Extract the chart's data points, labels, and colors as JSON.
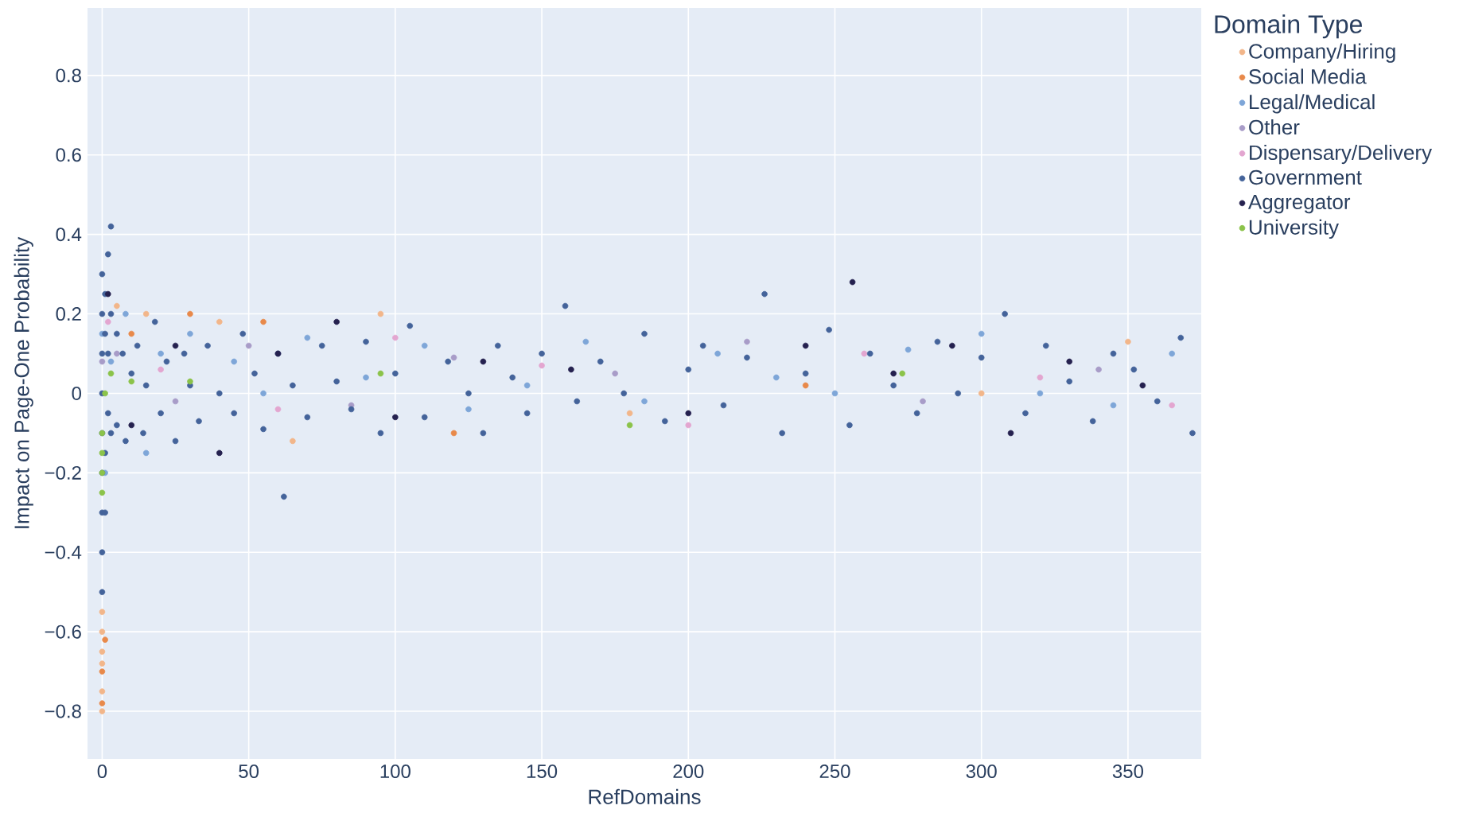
{
  "chart_data": {
    "type": "scatter",
    "xlabel": "RefDomains",
    "ylabel": "Impact on Page-One Probability",
    "legend_title": "Domain Type",
    "legend": "right",
    "grid": true,
    "xlim": [
      -5,
      375
    ],
    "ylim": [
      -0.92,
      0.97
    ],
    "xticks": [
      0,
      50,
      100,
      150,
      200,
      250,
      300,
      350
    ],
    "yticks": [
      {
        "value": -0.8,
        "label": "−0.8"
      },
      {
        "value": -0.6,
        "label": "−0.6"
      },
      {
        "value": -0.4,
        "label": "−0.4"
      },
      {
        "value": -0.2,
        "label": "−0.2"
      },
      0,
      0.2,
      0.4,
      0.6,
      0.8
    ],
    "series": [
      {
        "name": "Company/Hiring",
        "color": "#f2b68a",
        "x": [
          0,
          0,
          0,
          0,
          0,
          0,
          5,
          15,
          40,
          65,
          95,
          180,
          300,
          350
        ],
        "values": [
          -0.6,
          -0.65,
          -0.68,
          -0.75,
          -0.8,
          -0.55,
          0.22,
          0.2,
          0.18,
          -0.12,
          0.2,
          -0.05,
          0.0,
          0.13
        ]
      },
      {
        "name": "Social Media",
        "color": "#e8894a",
        "x": [
          0,
          0,
          1,
          10,
          30,
          55,
          120,
          240
        ],
        "values": [
          -0.7,
          -0.78,
          -0.62,
          0.15,
          0.2,
          0.18,
          -0.1,
          0.02
        ]
      },
      {
        "name": "Legal/Medical",
        "color": "#7ea6d8",
        "x": [
          0,
          1,
          3,
          8,
          15,
          20,
          30,
          45,
          55,
          70,
          90,
          110,
          125,
          145,
          165,
          185,
          210,
          230,
          250,
          275,
          300,
          320,
          345,
          365
        ],
        "values": [
          0.15,
          -0.2,
          0.08,
          0.2,
          -0.15,
          0.1,
          0.15,
          0.08,
          0.0,
          0.14,
          0.04,
          0.12,
          -0.04,
          0.02,
          0.13,
          -0.02,
          0.1,
          0.04,
          0.0,
          0.11,
          0.15,
          0.0,
          -0.03,
          0.1
        ]
      },
      {
        "name": "Other",
        "color": "#a89cc8",
        "x": [
          0,
          5,
          25,
          50,
          85,
          120,
          175,
          220,
          280,
          340
        ],
        "values": [
          0.08,
          0.1,
          -0.02,
          0.12,
          -0.03,
          0.09,
          0.05,
          0.13,
          -0.02,
          0.06
        ]
      },
      {
        "name": "Dispensary/Delivery",
        "color": "#e3a6d0",
        "x": [
          2,
          20,
          60,
          100,
          150,
          200,
          260,
          320,
          365
        ],
        "values": [
          0.18,
          0.06,
          -0.04,
          0.14,
          0.07,
          -0.08,
          0.1,
          0.04,
          -0.03
        ]
      },
      {
        "name": "Government",
        "color": "#44639a",
        "x": [
          0,
          0,
          0,
          0,
          0,
          0,
          0,
          0,
          0,
          1,
          1,
          1,
          1,
          2,
          2,
          2,
          3,
          3,
          3,
          5,
          5,
          7,
          8,
          10,
          12,
          14,
          15,
          18,
          20,
          22,
          25,
          28,
          30,
          33,
          36,
          40,
          45,
          48,
          52,
          55,
          60,
          62,
          65,
          70,
          75,
          80,
          85,
          90,
          95,
          100,
          105,
          110,
          118,
          125,
          130,
          135,
          140,
          145,
          150,
          158,
          162,
          170,
          178,
          185,
          192,
          200,
          205,
          212,
          220,
          226,
          232,
          240,
          248,
          255,
          262,
          270,
          278,
          285,
          292,
          300,
          308,
          315,
          322,
          330,
          338,
          345,
          352,
          360,
          368,
          372
        ],
        "values": [
          0.3,
          0.2,
          0.1,
          0,
          -0.1,
          -0.2,
          -0.3,
          -0.4,
          -0.5,
          0.25,
          0.15,
          -0.15,
          -0.3,
          0.35,
          0.1,
          -0.05,
          0.42,
          0.2,
          -0.1,
          0.15,
          -0.08,
          0.1,
          -0.12,
          0.05,
          0.12,
          -0.1,
          0.02,
          0.18,
          -0.05,
          0.08,
          -0.12,
          0.1,
          0.02,
          -0.07,
          0.12,
          0.0,
          -0.05,
          0.15,
          0.05,
          -0.09,
          0.1,
          -0.26,
          0.02,
          -0.06,
          0.12,
          0.03,
          -0.04,
          0.13,
          -0.1,
          0.05,
          0.17,
          -0.06,
          0.08,
          0.0,
          -0.1,
          0.12,
          0.04,
          -0.05,
          0.1,
          0.22,
          -0.02,
          0.08,
          0.0,
          0.15,
          -0.07,
          0.06,
          0.12,
          -0.03,
          0.09,
          0.25,
          -0.1,
          0.05,
          0.16,
          -0.08,
          0.1,
          0.02,
          -0.05,
          0.13,
          0.0,
          0.09,
          0.2,
          -0.05,
          0.12,
          0.03,
          -0.07,
          0.1,
          0.06,
          -0.02,
          0.14,
          -0.1
        ]
      },
      {
        "name": "Aggregator",
        "color": "#25214f",
        "x": [
          2,
          10,
          25,
          40,
          60,
          80,
          100,
          130,
          160,
          200,
          240,
          256,
          270,
          290,
          310,
          330,
          355
        ],
        "values": [
          0.25,
          -0.08,
          0.12,
          -0.15,
          0.1,
          0.18,
          -0.06,
          0.08,
          0.06,
          -0.05,
          0.12,
          0.28,
          0.05,
          0.12,
          -0.1,
          0.08,
          0.02
        ]
      },
      {
        "name": "University",
        "color": "#8bc34a",
        "x": [
          0,
          0,
          0,
          0,
          1,
          3,
          10,
          30,
          95,
          180,
          273
        ],
        "values": [
          -0.1,
          -0.15,
          -0.2,
          -0.25,
          0.0,
          0.05,
          0.03,
          0.03,
          0.05,
          -0.08,
          0.05
        ]
      }
    ]
  }
}
